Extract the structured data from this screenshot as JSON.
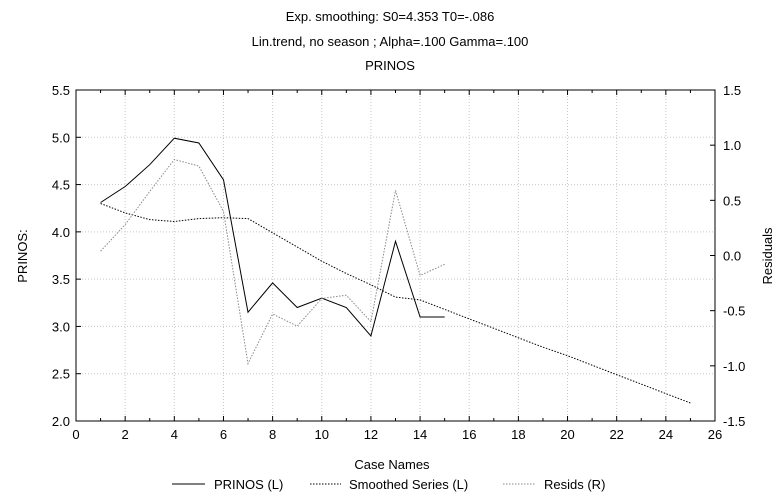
{
  "chart_data": {
    "type": "line",
    "title_lines": [
      "Exp. smoothing: S0=4.353 T0=-.086",
      "Lin.trend, no season ; Alpha=.100 Gamma=.100",
      "PRINOS"
    ],
    "xlabel": "Case Names",
    "ylabel_left": "PRINOS:",
    "ylabel_right": "Residuals",
    "xlim": [
      0,
      26
    ],
    "ylim_left": [
      2.0,
      5.5
    ],
    "ylim_right": [
      -1.5,
      1.5
    ],
    "x_ticks": [
      "0",
      "2",
      "4",
      "6",
      "8",
      "10",
      "12",
      "14",
      "16",
      "18",
      "20",
      "22",
      "24",
      "26"
    ],
    "y_ticks_left": [
      "2.0",
      "2.5",
      "3.0",
      "3.5",
      "4.0",
      "4.5",
      "5.0",
      "5.5"
    ],
    "y_ticks_right": [
      "-1.5",
      "-1.0",
      "-0.5",
      "0.0",
      "0.5",
      "1.0",
      "1.5"
    ],
    "grid": true,
    "legend_position": "bottom",
    "series": [
      {
        "name": "PRINOS (L)",
        "axis": "left",
        "style": "solid",
        "color": "#000000",
        "x": [
          1,
          2,
          3,
          4,
          5,
          6,
          7,
          8,
          9,
          10,
          11,
          12,
          13,
          14,
          15
        ],
        "y": [
          4.31,
          4.48,
          4.71,
          4.99,
          4.94,
          4.55,
          3.15,
          3.46,
          3.2,
          3.3,
          3.2,
          2.9,
          3.9,
          3.1,
          3.1
        ]
      },
      {
        "name": "Smoothed Series (L)",
        "axis": "left",
        "style": "dotted",
        "color": "#000000",
        "x": [
          1,
          2,
          3,
          4,
          5,
          6,
          7,
          8,
          9,
          10,
          11,
          12,
          13,
          14,
          15,
          16,
          17,
          18,
          19,
          20,
          21,
          22,
          23,
          24,
          25
        ],
        "y": [
          4.3,
          4.2,
          4.13,
          4.11,
          4.14,
          4.15,
          4.14,
          3.99,
          3.84,
          3.69,
          3.56,
          3.44,
          3.31,
          3.28,
          3.18,
          3.08,
          2.98,
          2.88,
          2.78,
          2.69,
          2.59,
          2.49,
          2.39,
          2.29,
          2.19
        ]
      },
      {
        "name": "Resids (R)",
        "axis": "right",
        "style": "dotted-light",
        "color": "#888888",
        "x": [
          1,
          2,
          3,
          4,
          5,
          6,
          7,
          8,
          9,
          10,
          11,
          12,
          13,
          14,
          15
        ],
        "y": [
          0.04,
          0.28,
          0.58,
          0.87,
          0.81,
          0.4,
          -0.98,
          -0.53,
          -0.64,
          -0.39,
          -0.36,
          -0.6,
          0.59,
          -0.18,
          -0.08
        ]
      }
    ]
  }
}
